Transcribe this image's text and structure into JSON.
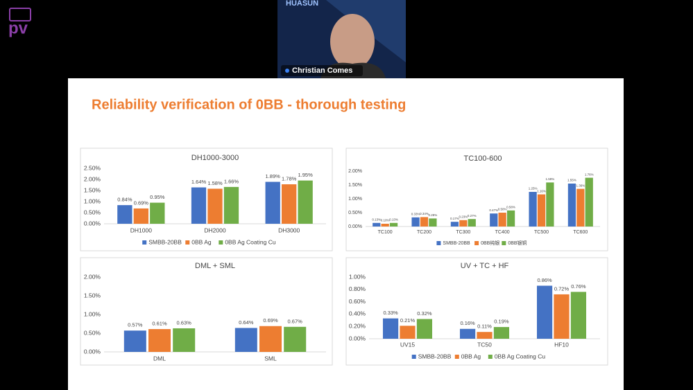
{
  "logo": "pv",
  "webcam": {
    "brand": "HUASUN",
    "speaker": "Christian Comes"
  },
  "slide": {
    "title": "Reliability verification of 0BB - thorough testing"
  },
  "chart_data": [
    {
      "type": "bar",
      "title": "DH1000-3000",
      "categories": [
        "DH1000",
        "DH2000",
        "DH3000"
      ],
      "series": [
        {
          "name": "SMBB-20BB",
          "color": "#4472c4",
          "values": [
            0.84,
            1.64,
            1.89
          ],
          "value_labels": [
            "0.84%",
            "1.64%",
            "1.89%"
          ]
        },
        {
          "name": "0BB Ag",
          "color": "#ed7d31",
          "values": [
            0.69,
            1.58,
            1.78
          ],
          "value_labels": [
            "0.69%",
            "1.58%",
            "1.78%"
          ]
        },
        {
          "name": "0BB Ag Coating Cu",
          "color": "#70ad47",
          "values": [
            0.95,
            1.66,
            1.95
          ],
          "value_labels": [
            "0.95%",
            "1.66%",
            "1.95%"
          ]
        }
      ],
      "ylim": [
        0,
        2.5
      ],
      "yticks": [
        {
          "value": 0,
          "label": "0.00%"
        },
        {
          "value": 0.5,
          "label": "0.50%"
        },
        {
          "value": 1,
          "label": "1.00%"
        },
        {
          "value": 1.5,
          "label": "1.50%"
        },
        {
          "value": 2,
          "label": "2.00%"
        },
        {
          "value": 2.5,
          "label": "2.50%"
        }
      ],
      "legend": "bottom"
    },
    {
      "type": "bar",
      "title": "TC100-600",
      "categories": [
        "TC100",
        "TC200",
        "TC300",
        "TC400",
        "TC500",
        "TC600"
      ],
      "series": [
        {
          "name": "SMBB-20BB",
          "color": "#4472c4",
          "values": [
            0.13,
            0.33,
            0.17,
            0.47,
            1.25,
            1.55
          ],
          "value_labels": [
            "0.13%",
            "0.33%",
            "0.17%",
            "0.47%",
            "1.25%",
            "1.55%"
          ]
        },
        {
          "name": "0BB纯银",
          "color": "#ed7d31",
          "values": [
            0.1,
            0.34,
            0.23,
            0.5,
            1.16,
            1.36
          ],
          "value_labels": [
            "0.10%",
            "0.34%",
            "0.23%",
            "0.50%",
            "1.16%",
            "1.36%"
          ]
        },
        {
          "name": "0BB银铜",
          "color": "#70ad47",
          "values": [
            0.13,
            0.29,
            0.27,
            0.58,
            1.59,
            1.76
          ],
          "value_labels": [
            "0.13%",
            "0.29%",
            "0.27%",
            "0.58%",
            "1.59%",
            "1.76%"
          ]
        }
      ],
      "ylim": [
        0,
        2
      ],
      "yticks": [
        {
          "value": 0,
          "label": "0.00%"
        },
        {
          "value": 0.5,
          "label": "0.50%"
        },
        {
          "value": 1,
          "label": "1.00%"
        },
        {
          "value": 1.5,
          "label": "1.50%"
        },
        {
          "value": 2,
          "label": "2.00%"
        }
      ],
      "legend": "bottom"
    },
    {
      "type": "bar",
      "title": "DML + SML",
      "categories": [
        "DML",
        "SML"
      ],
      "series": [
        {
          "color": "#4472c4",
          "values": [
            0.57,
            0.64
          ],
          "value_labels": [
            "0.57%",
            "0.64%"
          ]
        },
        {
          "color": "#ed7d31",
          "values": [
            0.61,
            0.69
          ],
          "value_labels": [
            "0.61%",
            "0.69%"
          ]
        },
        {
          "color": "#70ad47",
          "values": [
            0.63,
            0.67
          ],
          "value_labels": [
            "0.63%",
            "0.67%"
          ]
        }
      ],
      "ylim": [
        0,
        2
      ],
      "yticks": [
        {
          "value": 0,
          "label": "0.00%"
        },
        {
          "value": 0.5,
          "label": "0.50%"
        },
        {
          "value": 1,
          "label": "1.00%"
        },
        {
          "value": 1.5,
          "label": "1.50%"
        },
        {
          "value": 2,
          "label": "2.00%"
        }
      ]
    },
    {
      "type": "bar",
      "title": "UV + TC + HF",
      "categories": [
        "UV15",
        "TC50",
        "HF10"
      ],
      "series": [
        {
          "name": "SMBB-20BB",
          "color": "#4472c4",
          "values": [
            0.33,
            0.16,
            0.86
          ],
          "value_labels": [
            "0.33%",
            "0.16%",
            "0.86%"
          ]
        },
        {
          "name": "0BB Ag",
          "color": "#ed7d31",
          "values": [
            0.21,
            0.11,
            0.72
          ],
          "value_labels": [
            "0.21%",
            "0.11%",
            "0.72%"
          ]
        },
        {
          "name": "0BB Ag Coating Cu",
          "color": "#70ad47",
          "values": [
            0.32,
            0.19,
            0.76
          ],
          "value_labels": [
            "0.32%",
            "0.19%",
            "0.76%"
          ]
        }
      ],
      "ylim": [
        0,
        1
      ],
      "yticks": [
        {
          "value": 0,
          "label": "0.00%"
        },
        {
          "value": 0.2,
          "label": "0.20%"
        },
        {
          "value": 0.4,
          "label": "0.40%"
        },
        {
          "value": 0.6,
          "label": "0.60%"
        },
        {
          "value": 0.8,
          "label": "0.80%"
        },
        {
          "value": 1,
          "label": "1.00%"
        }
      ],
      "legend": "bottom"
    }
  ]
}
